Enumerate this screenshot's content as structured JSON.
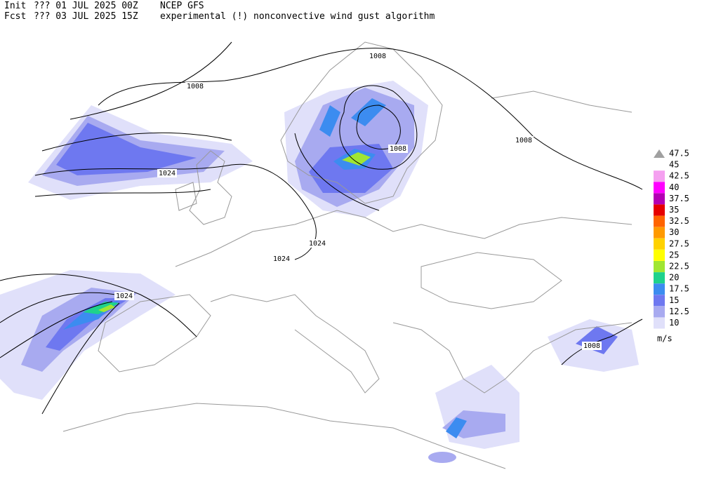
{
  "header": {
    "init_label": "Init",
    "init_time": "??? 01 JUL 2025 00Z",
    "model": "NCEP GFS",
    "fcst_label": "Fcst",
    "fcst_time": "??? 03 JUL 2025 15Z",
    "description": "experimental (!) nonconvective wind gust algorithm"
  },
  "map": {
    "contour_labels": [
      "1008",
      "1008",
      "1008",
      "1008",
      "1008",
      "1024",
      "1024",
      "1024",
      "1024"
    ]
  },
  "legend": {
    "units": "m/s",
    "levels": [
      {
        "value": 47.5,
        "color": "#a0a0a0"
      },
      {
        "value": 45
      },
      {
        "value": 42.5,
        "color": "#f5a0f0"
      },
      {
        "value": 40,
        "color": "#ff00ff"
      },
      {
        "value": 37.5,
        "color": "#b400b4"
      },
      {
        "value": 35,
        "color": "#e60000"
      },
      {
        "value": 32.5,
        "color": "#ff6400"
      },
      {
        "value": 30,
        "color": "#ff9a00"
      },
      {
        "value": 27.5,
        "color": "#ffd200"
      },
      {
        "value": 25,
        "color": "#ffff00"
      },
      {
        "value": 22.5,
        "color": "#a0e632"
      },
      {
        "value": 20,
        "color": "#1ed28c"
      },
      {
        "value": 17.5,
        "color": "#3c8cf0"
      },
      {
        "value": 15,
        "color": "#6e78f0"
      },
      {
        "value": 12.5,
        "color": "#a8aaf0"
      },
      {
        "value": 10,
        "color": "#e0e0fa"
      }
    ]
  }
}
